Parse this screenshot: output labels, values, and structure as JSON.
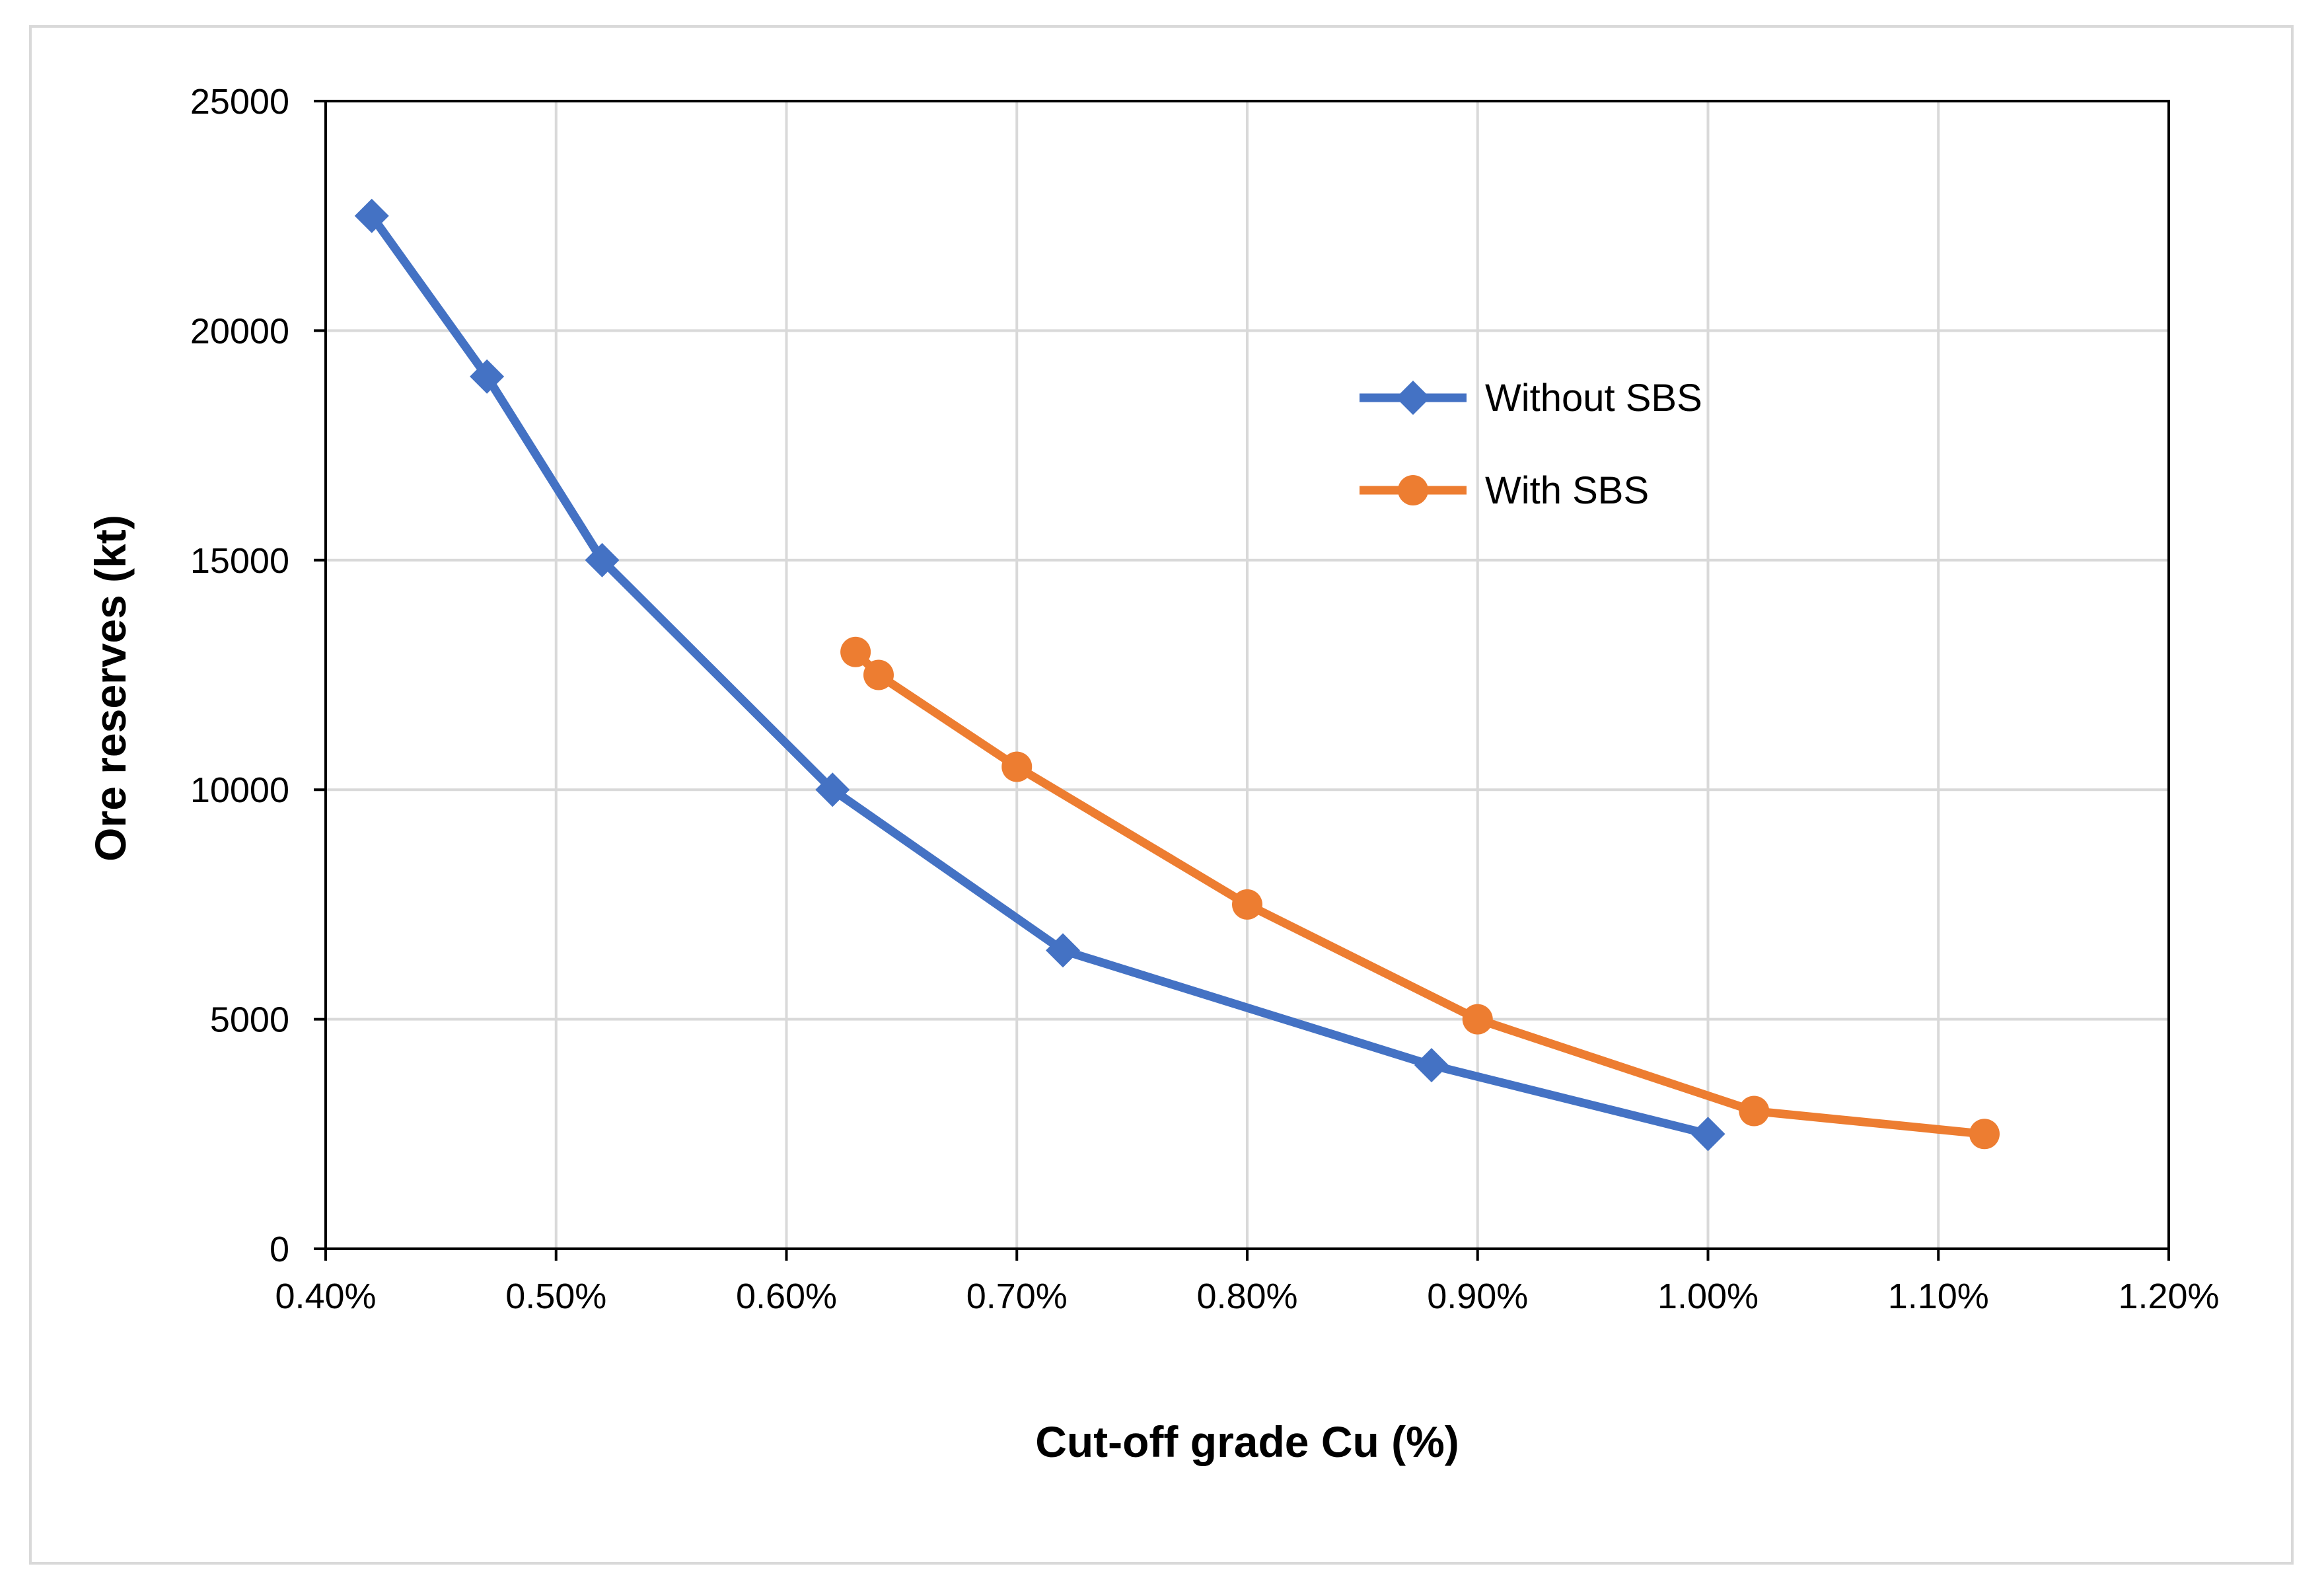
{
  "chart_data": {
    "type": "line",
    "title": "",
    "xlabel": "Cut-off grade Cu (%)",
    "ylabel": "Ore reserves (kt)",
    "xlim": [
      0.4,
      1.2
    ],
    "ylim": [
      0,
      25000
    ],
    "x_ticks": [
      0.4,
      0.5,
      0.6,
      0.7,
      0.8,
      0.9,
      1.0,
      1.1,
      1.2
    ],
    "x_tick_labels": [
      "0.40%",
      "0.50%",
      "0.60%",
      "0.70%",
      "0.80%",
      "0.90%",
      "1.00%",
      "1.10%",
      "1.20%"
    ],
    "y_ticks": [
      0,
      5000,
      10000,
      15000,
      20000,
      25000
    ],
    "y_tick_labels": [
      "0",
      "5000",
      "10000",
      "15000",
      "20000",
      "25000"
    ],
    "grid": true,
    "legend_position": "upper-right inside plot",
    "series": [
      {
        "name": "Without SBS",
        "color": "#4472c4",
        "marker": "diamond",
        "x": [
          0.42,
          0.47,
          0.52,
          0.62,
          0.72,
          0.88,
          1.0
        ],
        "y": [
          22500,
          19000,
          15000,
          10000,
          6500,
          4000,
          2500
        ]
      },
      {
        "name": "With SBS",
        "color": "#ed7d31",
        "marker": "circle",
        "x": [
          0.63,
          0.64,
          0.7,
          0.8,
          0.9,
          1.02,
          1.12
        ],
        "y": [
          13000,
          12500,
          10500,
          7500,
          5000,
          3000,
          2500
        ]
      }
    ]
  }
}
